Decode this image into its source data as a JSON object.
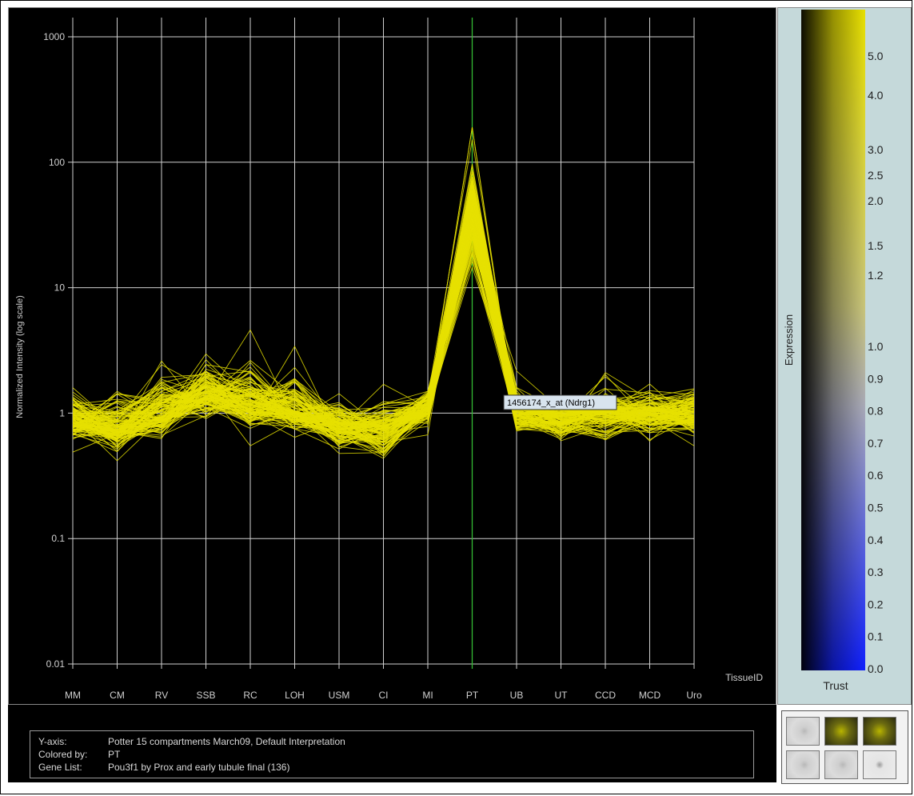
{
  "colors": {
    "line": "#e6e000",
    "highlight": "#33bb33",
    "grid": "#d0d0d0",
    "background": "#000000",
    "legend_panel": "#c5d9da"
  },
  "chart_data": {
    "type": "line",
    "ylabel": "Normalized Intensity (log scale)",
    "xlabel": "TissueID",
    "y_scale": "log",
    "ylim": [
      0.01,
      1000
    ],
    "y_ticks": [
      "1000",
      "100",
      "10",
      "1",
      "0.1",
      "0.01"
    ],
    "categories": [
      "MM",
      "CM",
      "RV",
      "SSB",
      "RC",
      "LOH",
      "USM",
      "CI",
      "MI",
      "PT",
      "UB",
      "UT",
      "CCD",
      "MCD",
      "Uro"
    ],
    "highlighted_category": "PT",
    "series_count": 136,
    "profile_median": [
      0.85,
      0.75,
      0.95,
      1.35,
      1.2,
      1.05,
      0.8,
      0.72,
      1.1,
      40,
      1.0,
      0.9,
      0.95,
      1.0,
      1.0
    ],
    "profile_spread_low": [
      0.6,
      0.45,
      0.6,
      0.75,
      0.65,
      0.65,
      0.45,
      0.35,
      0.75,
      10,
      0.6,
      0.55,
      0.5,
      0.6,
      0.55
    ],
    "profile_spread_high": [
      1.9,
      1.9,
      2.5,
      3.5,
      3.0,
      2.8,
      1.5,
      1.5,
      1.9,
      170,
      1.8,
      1.5,
      1.7,
      1.7,
      1.9
    ],
    "tooltip": "1456174_x_at (Ndrg1)",
    "tooltip_category": "UB",
    "tooltip_value": 1.2
  },
  "legend": {
    "title": "Expression",
    "footer": "Trust",
    "scale_labels": [
      "5.0",
      "4.0",
      "3.0",
      "2.5",
      "2.0",
      "1.5",
      "1.2",
      "1.0",
      "0.9",
      "0.8",
      "0.7",
      "0.6",
      "0.5",
      "0.4",
      "0.3",
      "0.2",
      "0.1",
      "0.0"
    ],
    "scale_values": [
      5.0,
      4.0,
      3.0,
      2.5,
      2.0,
      1.5,
      1.2,
      1.0,
      0.9,
      0.8,
      0.7,
      0.6,
      0.5,
      0.4,
      0.3,
      0.2,
      0.1,
      0.0
    ]
  },
  "info": {
    "yaxis_key": "Y-axis:",
    "yaxis_value": "Potter 15 compartments March09, Default Interpretation",
    "colored_key": "Colored by:",
    "colored_value": "PT",
    "genelist_key": "Gene List:",
    "genelist_value": "Pou3f1 by Prox and early tubule final (136)"
  },
  "thumbnails": [
    {
      "name": "thumbnail-1",
      "style": "gray"
    },
    {
      "name": "thumbnail-2",
      "style": "yellow"
    },
    {
      "name": "thumbnail-3",
      "style": "yellow"
    },
    {
      "name": "thumbnail-4",
      "style": "gray"
    },
    {
      "name": "thumbnail-5",
      "style": "gray"
    },
    {
      "name": "thumbnail-6",
      "style": "light"
    }
  ]
}
